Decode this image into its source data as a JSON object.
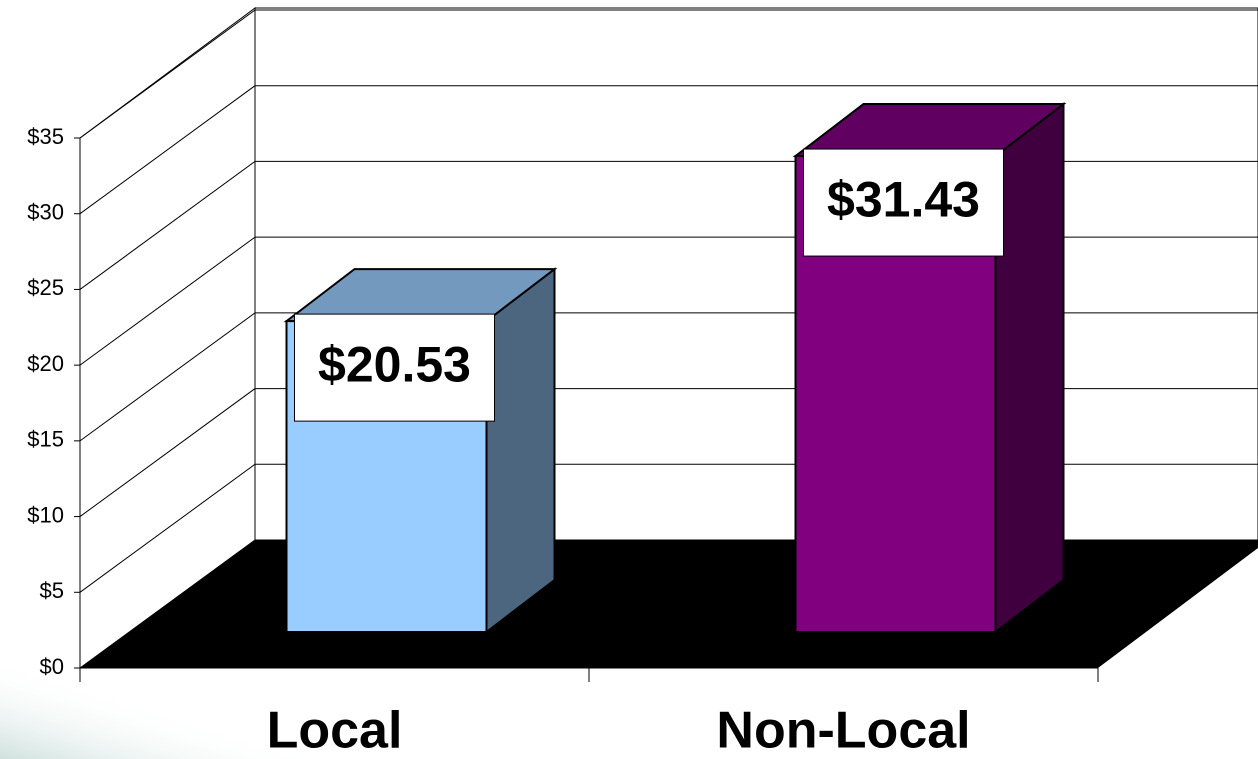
{
  "chart_data": {
    "type": "bar3d",
    "categories": [
      "Local",
      "Non-Local"
    ],
    "values": [
      20.53,
      31.43
    ],
    "value_labels": [
      "$20.53",
      "$31.43"
    ],
    "colors": [
      "#99ccff",
      "#800080"
    ],
    "ylim": [
      0,
      35
    ],
    "yticks": [
      {
        "value": 0,
        "label": "$0"
      },
      {
        "value": 5,
        "label": "$5"
      },
      {
        "value": 10,
        "label": "$10"
      },
      {
        "value": 15,
        "label": "$15"
      },
      {
        "value": 20,
        "label": "$20"
      },
      {
        "value": 25,
        "label": "$25"
      },
      {
        "value": 30,
        "label": "$30"
      },
      {
        "value": 35,
        "label": "$35"
      }
    ],
    "grid": true
  }
}
